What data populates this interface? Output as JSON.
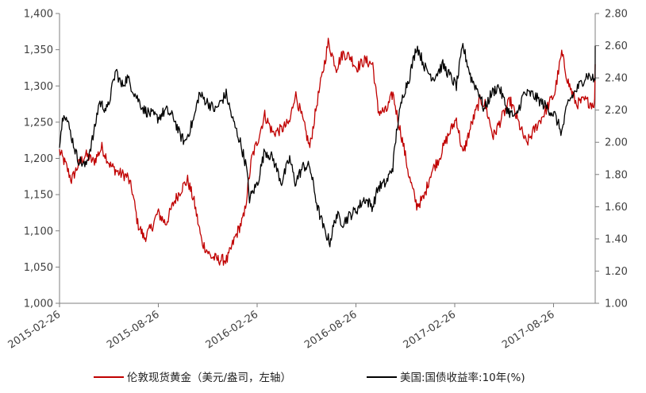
{
  "chart_data": {
    "type": "line",
    "x_ticks": [
      "2015-02-26",
      "2015-08-26",
      "2016-02-26",
      "2016-08-26",
      "2017-02-26",
      "2017-08-26"
    ],
    "y_left": {
      "ticks": [
        "1,000",
        "1,050",
        "1,100",
        "1,150",
        "1,200",
        "1,250",
        "1,300",
        "1,350",
        "1,400"
      ],
      "range": [
        1000,
        1400
      ]
    },
    "y_right": {
      "ticks": [
        "1.00",
        "1.20",
        "1.40",
        "1.60",
        "1.80",
        "2.00",
        "2.20",
        "2.40",
        "2.60",
        "2.80"
      ],
      "range": [
        1.0,
        2.8
      ]
    },
    "grid": false,
    "legend_position": "bottom",
    "series": [
      {
        "name": "伦敦现货黄金（美元/盎司，左轴）",
        "axis": "left",
        "color": "#C00000",
        "points": [
          [
            "2015-02-26",
            1210
          ],
          [
            "2015-03-10",
            1190
          ],
          [
            "2015-03-20",
            1170
          ],
          [
            "2015-04-01",
            1190
          ],
          [
            "2015-04-15",
            1205
          ],
          [
            "2015-04-30",
            1195
          ],
          [
            "2015-05-15",
            1215
          ],
          [
            "2015-05-31",
            1190
          ],
          [
            "2015-06-15",
            1180
          ],
          [
            "2015-07-01",
            1175
          ],
          [
            "2015-07-10",
            1155
          ],
          [
            "2015-07-20",
            1110
          ],
          [
            "2015-08-01",
            1090
          ],
          [
            "2015-08-15",
            1105
          ],
          [
            "2015-08-26",
            1125
          ],
          [
            "2015-09-10",
            1110
          ],
          [
            "2015-09-25",
            1140
          ],
          [
            "2015-10-10",
            1160
          ],
          [
            "2015-10-20",
            1170
          ],
          [
            "2015-11-01",
            1140
          ],
          [
            "2015-11-15",
            1085
          ],
          [
            "2015-12-01",
            1065
          ],
          [
            "2015-12-15",
            1060
          ],
          [
            "2016-01-01",
            1060
          ],
          [
            "2016-01-15",
            1090
          ],
          [
            "2016-02-01",
            1120
          ],
          [
            "2016-02-15",
            1200
          ],
          [
            "2016-02-26",
            1225
          ],
          [
            "2016-03-10",
            1260
          ],
          [
            "2016-03-25",
            1235
          ],
          [
            "2016-04-10",
            1240
          ],
          [
            "2016-04-25",
            1250
          ],
          [
            "2016-05-05",
            1290
          ],
          [
            "2016-05-20",
            1250
          ],
          [
            "2016-06-01",
            1215
          ],
          [
            "2016-06-15",
            1280
          ],
          [
            "2016-06-24",
            1315
          ],
          [
            "2016-07-05",
            1360
          ],
          [
            "2016-07-20",
            1325
          ],
          [
            "2016-08-01",
            1345
          ],
          [
            "2016-08-15",
            1340
          ],
          [
            "2016-08-26",
            1325
          ],
          [
            "2016-09-10",
            1335
          ],
          [
            "2016-09-25",
            1330
          ],
          [
            "2016-10-05",
            1265
          ],
          [
            "2016-10-20",
            1265
          ],
          [
            "2016-11-01",
            1290
          ],
          [
            "2016-11-10",
            1255
          ],
          [
            "2016-11-20",
            1220
          ],
          [
            "2016-12-01",
            1175
          ],
          [
            "2016-12-15",
            1135
          ],
          [
            "2016-12-28",
            1145
          ],
          [
            "2017-01-10",
            1180
          ],
          [
            "2017-01-25",
            1200
          ],
          [
            "2017-02-10",
            1230
          ],
          [
            "2017-02-26",
            1255
          ],
          [
            "2017-03-10",
            1205
          ],
          [
            "2017-03-25",
            1245
          ],
          [
            "2017-04-10",
            1280
          ],
          [
            "2017-04-20",
            1275
          ],
          [
            "2017-05-05",
            1230
          ],
          [
            "2017-05-20",
            1255
          ],
          [
            "2017-06-05",
            1280
          ],
          [
            "2017-06-20",
            1250
          ],
          [
            "2017-07-05",
            1220
          ],
          [
            "2017-07-20",
            1240
          ],
          [
            "2017-08-05",
            1260
          ],
          [
            "2017-08-26",
            1290
          ],
          [
            "2017-09-08",
            1345
          ],
          [
            "2017-09-20",
            1305
          ],
          [
            "2017-10-05",
            1275
          ],
          [
            "2017-10-20",
            1280
          ],
          [
            "2017-11-05",
            1275
          ],
          [
            "2017-11-20",
            1290
          ],
          [
            "2017-12-05",
            1245
          ],
          [
            "2017-12-15",
            1260
          ],
          [
            "2017-12-31",
            1305
          ],
          [
            "2018-01-15",
            1340
          ],
          [
            "2018-01-25",
            1355
          ],
          [
            "2018-02-05",
            1330
          ],
          [
            "2018-02-15",
            1330
          ]
        ]
      },
      {
        "name": "美国:国债收益率:10年(%)",
        "axis": "right",
        "color": "#000000",
        "points": [
          [
            "2015-02-26",
            2.0
          ],
          [
            "2015-03-06",
            2.2
          ],
          [
            "2015-03-15",
            2.1
          ],
          [
            "2015-03-31",
            1.9
          ],
          [
            "2015-04-15",
            1.85
          ],
          [
            "2015-04-30",
            2.05
          ],
          [
            "2015-05-10",
            2.25
          ],
          [
            "2015-05-25",
            2.2
          ],
          [
            "2015-06-10",
            2.45
          ],
          [
            "2015-06-20",
            2.35
          ],
          [
            "2015-07-01",
            2.4
          ],
          [
            "2015-07-15",
            2.3
          ],
          [
            "2015-08-01",
            2.2
          ],
          [
            "2015-08-26",
            2.15
          ],
          [
            "2015-09-10",
            2.2
          ],
          [
            "2015-09-25",
            2.15
          ],
          [
            "2015-10-05",
            2.05
          ],
          [
            "2015-10-15",
            2.0
          ],
          [
            "2015-11-01",
            2.15
          ],
          [
            "2015-11-10",
            2.3
          ],
          [
            "2015-11-25",
            2.25
          ],
          [
            "2015-12-10",
            2.2
          ],
          [
            "2015-12-30",
            2.3
          ],
          [
            "2016-01-10",
            2.15
          ],
          [
            "2016-01-25",
            2.0
          ],
          [
            "2016-02-05",
            1.85
          ],
          [
            "2016-02-11",
            1.65
          ],
          [
            "2016-02-26",
            1.75
          ],
          [
            "2016-03-10",
            1.95
          ],
          [
            "2016-03-25",
            1.9
          ],
          [
            "2016-04-10",
            1.75
          ],
          [
            "2016-04-25",
            1.9
          ],
          [
            "2016-05-05",
            1.75
          ],
          [
            "2016-05-20",
            1.85
          ],
          [
            "2016-06-01",
            1.85
          ],
          [
            "2016-06-15",
            1.6
          ],
          [
            "2016-06-28",
            1.45
          ],
          [
            "2016-07-08",
            1.38
          ],
          [
            "2016-07-20",
            1.55
          ],
          [
            "2016-08-01",
            1.5
          ],
          [
            "2016-08-15",
            1.55
          ],
          [
            "2016-08-26",
            1.58
          ],
          [
            "2016-09-10",
            1.65
          ],
          [
            "2016-09-25",
            1.6
          ],
          [
            "2016-10-05",
            1.72
          ],
          [
            "2016-10-20",
            1.75
          ],
          [
            "2016-11-01",
            1.85
          ],
          [
            "2016-11-09",
            2.1
          ],
          [
            "2016-11-20",
            2.3
          ],
          [
            "2016-12-01",
            2.4
          ],
          [
            "2016-12-15",
            2.6
          ],
          [
            "2017-01-01",
            2.45
          ],
          [
            "2017-01-15",
            2.4
          ],
          [
            "2017-02-01",
            2.48
          ],
          [
            "2017-02-26",
            2.35
          ],
          [
            "2017-03-10",
            2.6
          ],
          [
            "2017-03-25",
            2.4
          ],
          [
            "2017-04-10",
            2.3
          ],
          [
            "2017-04-18",
            2.2
          ],
          [
            "2017-05-01",
            2.3
          ],
          [
            "2017-05-15",
            2.35
          ],
          [
            "2017-05-31",
            2.2
          ],
          [
            "2017-06-15",
            2.15
          ],
          [
            "2017-06-30",
            2.3
          ],
          [
            "2017-07-15",
            2.3
          ],
          [
            "2017-08-01",
            2.25
          ],
          [
            "2017-08-26",
            2.17
          ],
          [
            "2017-09-08",
            2.06
          ],
          [
            "2017-09-20",
            2.25
          ],
          [
            "2017-10-10",
            2.35
          ],
          [
            "2017-10-25",
            2.42
          ],
          [
            "2017-11-10",
            2.38
          ],
          [
            "2017-11-25",
            2.35
          ],
          [
            "2017-12-10",
            2.38
          ],
          [
            "2017-12-31",
            2.4
          ],
          [
            "2018-01-10",
            2.5
          ],
          [
            "2018-01-25",
            2.55
          ],
          [
            "2018-02-05",
            2.6
          ],
          [
            "2018-02-15",
            2.6
          ]
        ]
      }
    ]
  }
}
